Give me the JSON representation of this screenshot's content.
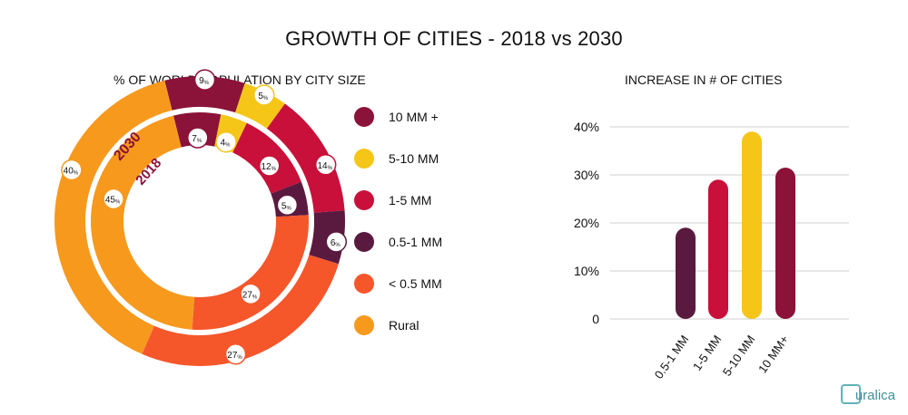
{
  "title": "GROWTH OF CITIES -  2018 vs 2030",
  "chart_data": [
    {
      "type": "pie",
      "title": "% OF WORLD POPULATION BY CITY SIZE",
      "ring_labels": [
        "2030",
        "2018"
      ],
      "categories": [
        "10 MM +",
        "5-10 MM",
        "1-5 MM",
        "0.5-1 MM",
        "< 0.5 MM",
        "Rural"
      ],
      "colors": [
        "#8b1238",
        "#f5c518",
        "#c8103a",
        "#5a1a3f",
        "#f5562a",
        "#f6991d"
      ],
      "series": [
        {
          "name": "2030",
          "values": [
            9,
            5,
            14,
            6,
            27,
            40
          ]
        },
        {
          "name": "2018",
          "values": [
            7,
            4,
            12,
            5,
            27,
            45
          ]
        }
      ],
      "legend_position": "right"
    },
    {
      "type": "bar",
      "title": "INCREASE IN # OF CITIES",
      "categories": [
        "0.5-1 MM",
        "1-5 MM",
        "5-10 MM",
        "10 MM+"
      ],
      "values": [
        19,
        29,
        39,
        31.5
      ],
      "colors": [
        "#5a1a3f",
        "#c8103a",
        "#f5c518",
        "#8b1238"
      ],
      "ylim": [
        0,
        40
      ],
      "yticks": [
        "0",
        "10%",
        "20%",
        "30%",
        "40%"
      ],
      "grid": true
    }
  ],
  "watermark": "uralica"
}
